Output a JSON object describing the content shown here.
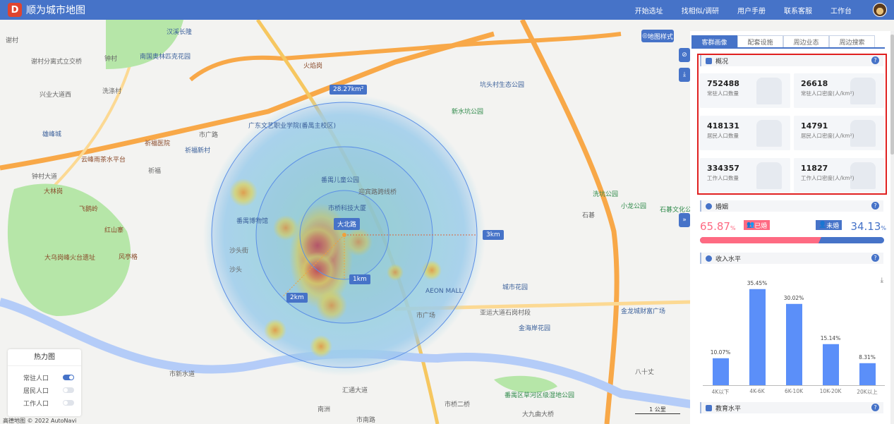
{
  "header": {
    "logo": "D",
    "title": "顺为城市地图",
    "nav": [
      "开始选址",
      "找相似/调研",
      "用户手册",
      "联系客服",
      "工作台"
    ]
  },
  "map": {
    "style_button": "地图样式",
    "area_label": "28.27km²",
    "center_label": "大北路",
    "rings": [
      "1km",
      "2km",
      "3km"
    ],
    "labels": [
      {
        "t": "汉溪长隆",
        "c": "b"
      },
      {
        "t": "谢村",
        "c": ""
      },
      {
        "t": "钟村",
        "c": ""
      },
      {
        "t": "南国奥林匹克花园",
        "c": "b"
      },
      {
        "t": "谢村分离式立交桥",
        "c": ""
      },
      {
        "t": "洗涤村",
        "c": ""
      },
      {
        "t": "兴业大道西",
        "c": ""
      },
      {
        "t": "市广路",
        "c": ""
      },
      {
        "t": "祈福医院",
        "c": "r"
      },
      {
        "t": "祈福新村",
        "c": "b"
      },
      {
        "t": "广东文艺职业学院(番禺主校区)",
        "c": "b"
      },
      {
        "t": "云峰雨茶水平台",
        "c": "r"
      },
      {
        "t": "大林岗",
        "c": "r"
      },
      {
        "t": "飞鹅岭",
        "c": "r"
      },
      {
        "t": "红山寨",
        "c": "r"
      },
      {
        "t": "风亭格",
        "c": "r"
      },
      {
        "t": "大乌岗峰火台遗址",
        "c": "r"
      },
      {
        "t": "雄峰城",
        "c": "b"
      },
      {
        "t": "祈福",
        "c": ""
      },
      {
        "t": "钟村大道",
        "c": ""
      },
      {
        "t": "沙头",
        "c": ""
      },
      {
        "t": "番禺博物馆",
        "c": "b"
      },
      {
        "t": "番禺儿童公园",
        "c": "b"
      },
      {
        "t": "迎宾路跨线桥",
        "c": ""
      },
      {
        "t": "市桥科技大厦",
        "c": "b"
      },
      {
        "t": "新水坑公园",
        "c": "g"
      },
      {
        "t": "坑头村生态公园",
        "c": "b"
      },
      {
        "t": "火焰岗",
        "c": "r"
      },
      {
        "t": "市广场",
        "c": ""
      },
      {
        "t": "AEON MALL",
        "c": "b"
      },
      {
        "t": "城市花园",
        "c": "b"
      },
      {
        "t": "金龙城财富广场",
        "c": "b"
      },
      {
        "t": "亚运大道石岗村段",
        "c": ""
      },
      {
        "t": "金海岸花园",
        "c": "b"
      },
      {
        "t": "八十丈",
        "c": ""
      },
      {
        "t": "番禺区草河区级湿地公园",
        "c": "g"
      },
      {
        "t": "市桥二桥",
        "c": ""
      },
      {
        "t": "大九曲大桥",
        "c": ""
      },
      {
        "t": "石碁",
        "c": ""
      },
      {
        "t": "小龙公园",
        "c": "g"
      },
      {
        "t": "洗坑公园",
        "c": "g"
      },
      {
        "t": "石碁文化公园",
        "c": "g"
      },
      {
        "t": "市新水道",
        "c": ""
      },
      {
        "t": "汇通大道",
        "c": ""
      },
      {
        "t": "南洲",
        "c": ""
      },
      {
        "t": "市南路",
        "c": ""
      },
      {
        "t": "沙头街",
        "c": ""
      }
    ],
    "scale": "1 公里",
    "copyright": "高德地图 © 2022 AutoNavi"
  },
  "heatmap_legend": {
    "title": "热力图",
    "items": [
      {
        "label": "常驻人口",
        "on": true
      },
      {
        "label": "居民人口",
        "on": false
      },
      {
        "label": "工作人口",
        "on": false
      }
    ]
  },
  "panel": {
    "tabs": [
      "客群画像",
      "配套设施",
      "周边业态",
      "周边搜索"
    ],
    "active_tab": 0,
    "overview": {
      "title": "概况",
      "cards": [
        {
          "value": "752488",
          "label": "常驻人口数量"
        },
        {
          "value": "26618",
          "label": "常驻人口密度(人/km²)"
        },
        {
          "value": "418131",
          "label": "居民人口数量"
        },
        {
          "value": "14791",
          "label": "居民人口密度(人/km²)"
        },
        {
          "value": "334357",
          "label": "工作人口数量"
        },
        {
          "value": "11827",
          "label": "工作人口密度(人/km²)"
        }
      ]
    },
    "marriage": {
      "title": "婚姻",
      "married_pct": "65.87",
      "married_label": "已婚",
      "unmarried_pct": "34.13",
      "unmarried_label": "未婚",
      "unit": "%",
      "married_color": "#fe6a82",
      "unmarried_color": "#4673c8"
    },
    "income": {
      "title": "收入水平"
    },
    "education": {
      "title": "教育水平"
    }
  },
  "chart_data": {
    "type": "bar",
    "categories": [
      "4K以下",
      "4K-6K",
      "6K-10K",
      "10K-20K",
      "20K以上"
    ],
    "values": [
      10.07,
      35.45,
      30.02,
      15.14,
      8.31
    ],
    "data_labels": [
      "10.07%",
      "35.45%",
      "30.02%",
      "15.14%",
      "8.31%"
    ],
    "color": "#5b8ff9",
    "grid": false
  }
}
